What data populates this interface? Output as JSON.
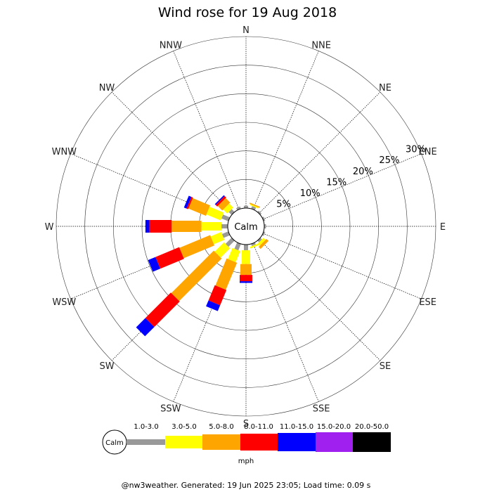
{
  "chart_data": {
    "type": "wind-rose",
    "title": "Wind rose for 19 Aug 2018",
    "directions": [
      "N",
      "NNE",
      "NE",
      "ENE",
      "E",
      "ESE",
      "SE",
      "SSE",
      "S",
      "SSW",
      "SW",
      "WSW",
      "W",
      "WNW",
      "NW",
      "NNW"
    ],
    "radial_ticks": [
      "5%",
      "10%",
      "15%",
      "20%",
      "25%",
      "30%"
    ],
    "radial_values": [
      5,
      10,
      15,
      20,
      25,
      30
    ],
    "radial_max": 30,
    "calm_label": "Calm",
    "units": "mph",
    "bins": [
      {
        "label": "1.0-3.0",
        "color": "#999999"
      },
      {
        "label": "3.0-5.0",
        "color": "#ffff00"
      },
      {
        "label": "5.0-8.0",
        "color": "#ffa500"
      },
      {
        "label": "8.0-11.0",
        "color": "#ff0000"
      },
      {
        "label": "11.0-15.0",
        "color": "#0000ff"
      },
      {
        "label": "15.0-20.0",
        "color": "#a020f0"
      },
      {
        "label": "20.0-50.0",
        "color": "#000000"
      }
    ],
    "series": [
      {
        "direction": "N",
        "values": [
          0.4,
          0.0,
          0.0,
          0.0,
          0.0,
          0.0,
          0.0
        ]
      },
      {
        "direction": "NNE",
        "values": [
          0.5,
          0.2,
          0.2,
          0.0,
          0.0,
          0.0,
          0.0
        ]
      },
      {
        "direction": "NE",
        "values": [
          0.3,
          0.0,
          0.0,
          0.0,
          0.0,
          0.0,
          0.0
        ]
      },
      {
        "direction": "ENE",
        "values": [
          0.3,
          0.0,
          0.0,
          0.0,
          0.0,
          0.0,
          0.0
        ]
      },
      {
        "direction": "E",
        "values": [
          0.3,
          0.0,
          0.0,
          0.0,
          0.0,
          0.0,
          0.0
        ]
      },
      {
        "direction": "ESE",
        "values": [
          0.3,
          0.0,
          0.0,
          0.0,
          0.0,
          0.0,
          0.0
        ]
      },
      {
        "direction": "SE",
        "values": [
          0.4,
          0.5,
          0.5,
          0.0,
          0.0,
          0.0,
          0.0
        ]
      },
      {
        "direction": "SSE",
        "values": [
          0.4,
          0.3,
          0.0,
          0.0,
          0.0,
          0.0,
          0.0
        ]
      },
      {
        "direction": "S",
        "values": [
          1.0,
          2.4,
          1.9,
          1.1,
          0.3,
          0.0,
          0.0
        ]
      },
      {
        "direction": "SSW",
        "values": [
          1.2,
          2.1,
          5.1,
          2.9,
          1.1,
          0.0,
          0.0
        ]
      },
      {
        "direction": "SW",
        "values": [
          1.5,
          2.3,
          10.5,
          6.3,
          2.3,
          0.0,
          0.0
        ]
      },
      {
        "direction": "WSW",
        "values": [
          1.2,
          2.0,
          5.8,
          4.5,
          1.4,
          0.0,
          0.0
        ]
      },
      {
        "direction": "W",
        "values": [
          1.1,
          3.5,
          5.2,
          3.9,
          0.7,
          0.0,
          0.0
        ]
      },
      {
        "direction": "WNW",
        "values": [
          1.3,
          2.7,
          3.3,
          0.3,
          0.5,
          0.0,
          0.0
        ]
      },
      {
        "direction": "NW",
        "values": [
          0.7,
          1.0,
          1.1,
          0.4,
          0.2,
          0.0,
          0.0
        ]
      },
      {
        "direction": "NNW",
        "values": [
          0.4,
          0.0,
          0.0,
          0.0,
          0.0,
          0.0,
          0.0
        ]
      }
    ]
  },
  "footer": "@nw3weather. Generated: 19 Jun 2025 23:05; Load time: 0.09 s"
}
